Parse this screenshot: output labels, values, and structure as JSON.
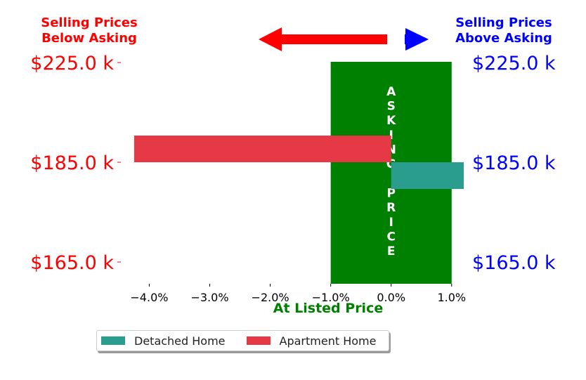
{
  "header": {
    "left_line1": "Selling Prices",
    "left_line2": "Below Asking",
    "right_line1": "Selling Prices",
    "right_line2": "Above Asking",
    "left_color": "#ff0000",
    "right_color": "#0000ff"
  },
  "asking_band": {
    "text": "ASKING PRICE",
    "color": "#008000",
    "x_range": [
      -1.0,
      1.0
    ]
  },
  "xlabel_text": "At Listed Price",
  "chart_data": {
    "type": "bar",
    "orientation": "horizontal",
    "categories": [
      "$225.0 k",
      "$185.0 k",
      "$165.0 k"
    ],
    "right_categories": [
      "$225.0 k",
      "$185.0 k",
      "$165.0 k"
    ],
    "xlabel": "At Listed Price",
    "xlim": [
      -4.4,
      1.2
    ],
    "xticks": [
      -4.0,
      -3.0,
      -2.0,
      -1.0,
      0.0,
      1.0
    ],
    "xtick_labels": [
      "−4.0%",
      "−3.0%",
      "−2.0%",
      "−1.0%",
      "0.0%",
      "1.0%"
    ],
    "series": [
      {
        "name": "Detached Home",
        "color": "#2a9d8f",
        "values": [
          null,
          1.2,
          null
        ]
      },
      {
        "name": "Apartment Home",
        "color": "#e63946",
        "values": [
          null,
          -4.25,
          null
        ]
      }
    ],
    "legend": "bottom"
  }
}
